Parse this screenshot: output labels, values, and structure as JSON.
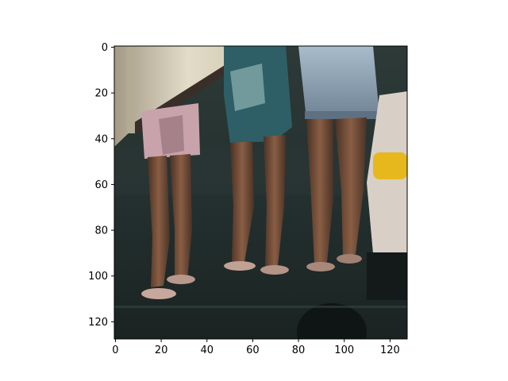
{
  "chart_data": {
    "type": "image",
    "image_size": {
      "width": 128,
      "height": 128
    },
    "xlim": [
      -0.5,
      127.5
    ],
    "ylim": [
      127.5,
      -0.5
    ],
    "x_ticks": [
      0,
      20,
      40,
      60,
      80,
      100,
      120
    ],
    "y_ticks": [
      0,
      20,
      40,
      60,
      80,
      100,
      120
    ],
    "title": "",
    "xlabel": "",
    "ylabel": "",
    "grid": false,
    "image_description_icon": "legs-and-sandals-photo"
  },
  "colors": {
    "background": "#ffffff",
    "axes_edge": "#000000",
    "floor_dark": "#1f2a28",
    "floor_mid": "#2b3936",
    "wall_light": "#d8d2c0",
    "skin": "#6e4a36",
    "skin_light": "#8a5e44",
    "denim": "#8ea3b5",
    "shorts_pink": "#c9a3ab",
    "shorts_teal": "#2f5f66",
    "yellow": "#e7b81e",
    "dark_shadow": "#0f1514"
  }
}
